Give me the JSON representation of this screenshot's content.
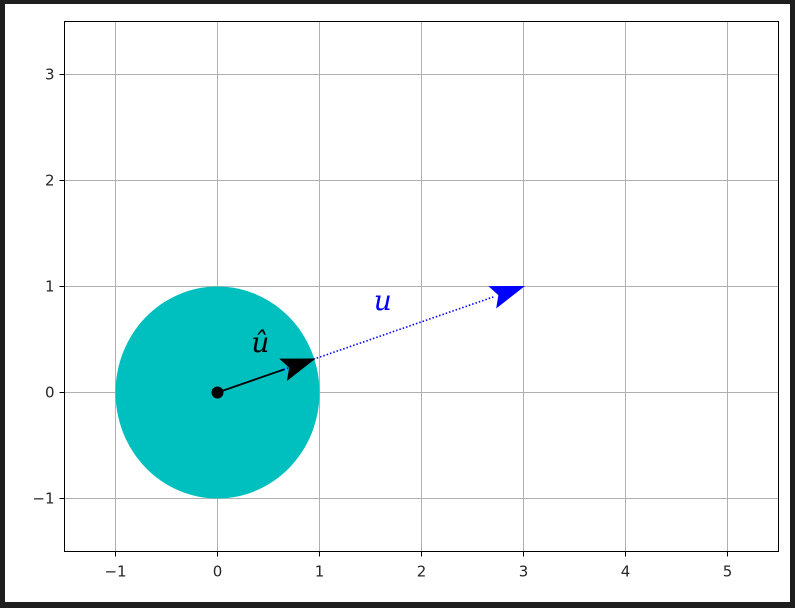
{
  "chart_data": {
    "type": "vector-plot",
    "title": "",
    "xlabel": "",
    "ylabel": "",
    "xlim": [
      -1.5,
      5.5
    ],
    "ylim": [
      -1.5,
      3.5
    ],
    "xticks": [
      -1,
      0,
      1,
      2,
      3,
      4,
      5
    ],
    "yticks": [
      -1,
      0,
      1,
      2,
      3
    ],
    "xtick_labels": [
      "−1",
      "0",
      "1",
      "2",
      "3",
      "4",
      "5"
    ],
    "ytick_labels": [
      "−1",
      "0",
      "1",
      "2",
      "3"
    ],
    "grid": true,
    "circle": {
      "center": [
        0,
        0
      ],
      "radius": 1,
      "color": "#00bfbf"
    },
    "origin_point": {
      "x": 0,
      "y": 0,
      "color": "#000000"
    },
    "vectors": [
      {
        "name": "u",
        "from": [
          0,
          0
        ],
        "to": [
          3,
          1
        ],
        "style": "dotted",
        "color": "#0000ff",
        "label": "u",
        "label_pos": [
          1.62,
          0.78
        ]
      },
      {
        "name": "u-hat",
        "from": [
          0,
          0
        ],
        "to": [
          0.9487,
          0.3162
        ],
        "style": "solid",
        "color": "#000000",
        "label": "û",
        "label_pos": [
          0.42,
          0.38
        ]
      }
    ]
  }
}
